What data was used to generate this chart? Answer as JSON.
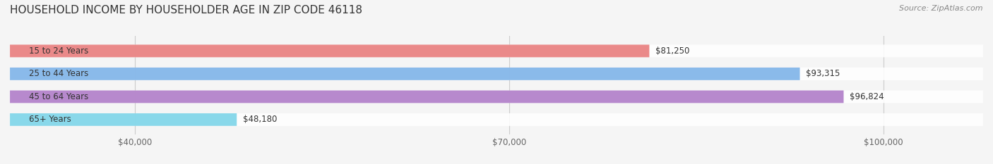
{
  "title": "HOUSEHOLD INCOME BY HOUSEHOLDER AGE IN ZIP CODE 46118",
  "source": "Source: ZipAtlas.com",
  "categories": [
    "15 to 24 Years",
    "25 to 44 Years",
    "45 to 64 Years",
    "65+ Years"
  ],
  "values": [
    81250,
    93315,
    96824,
    48180
  ],
  "bar_colors": [
    "#E87D7D",
    "#7EB3E8",
    "#B07DC8",
    "#7DD4E8"
  ],
  "bar_bg_color": "#EEEEEE",
  "value_labels": [
    "$81,250",
    "$93,315",
    "$96,824",
    "$48,180"
  ],
  "x_ticks": [
    40000,
    70000,
    100000
  ],
  "x_tick_labels": [
    "$40,000",
    "$70,000",
    "$100,000"
  ],
  "xlim_left": 30000,
  "xlim_right": 108000,
  "bar_height": 0.55,
  "background_color": "#F5F5F5",
  "bar_bg_alpha": 0.5,
  "title_fontsize": 11,
  "source_fontsize": 8,
  "label_fontsize": 8.5,
  "value_fontsize": 8.5,
  "tick_fontsize": 8.5
}
